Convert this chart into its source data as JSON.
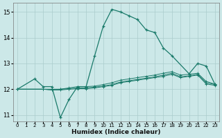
{
  "xlabel": "Humidex (Indice chaleur)",
  "ylabel": "",
  "bg_color": "#cce8e8",
  "grid_color": "#aacccc",
  "line_color": "#1a7a6a",
  "xlim": [
    -0.5,
    23.5
  ],
  "ylim": [
    10.75,
    15.35
  ],
  "yticks": [
    11,
    12,
    13,
    14,
    15
  ],
  "xticks": [
    0,
    1,
    2,
    3,
    4,
    5,
    6,
    7,
    8,
    9,
    10,
    11,
    12,
    13,
    14,
    15,
    16,
    17,
    18,
    19,
    20,
    21,
    22,
    23
  ],
  "curve1_x": [
    0,
    2,
    3,
    4,
    5,
    6,
    7,
    8,
    9,
    10,
    11,
    12,
    13,
    14,
    15,
    16,
    17,
    18,
    20,
    21,
    22,
    23
  ],
  "curve1_y": [
    12.0,
    12.4,
    12.1,
    12.1,
    10.9,
    11.6,
    12.1,
    12.1,
    13.3,
    14.45,
    15.1,
    15.0,
    14.85,
    14.7,
    14.3,
    14.2,
    13.6,
    13.3,
    12.6,
    13.0,
    12.9,
    12.2
  ],
  "curve2_x": [
    0,
    3,
    4,
    5,
    6,
    7,
    8,
    9,
    10,
    11,
    12,
    13,
    14,
    15,
    16,
    17,
    18,
    19,
    20,
    21,
    22,
    23
  ],
  "curve2_y": [
    12.0,
    12.0,
    12.0,
    12.0,
    12.05,
    12.1,
    12.1,
    12.12,
    12.18,
    12.25,
    12.35,
    12.4,
    12.45,
    12.5,
    12.55,
    12.62,
    12.68,
    12.55,
    12.58,
    12.62,
    12.3,
    12.2
  ],
  "curve3_x": [
    0,
    3,
    4,
    5,
    6,
    7,
    8,
    9,
    10,
    11,
    12,
    13,
    14,
    15,
    16,
    17,
    18,
    19,
    20,
    21,
    22,
    23
  ],
  "curve3_y": [
    12.0,
    12.0,
    11.98,
    12.0,
    12.02,
    12.05,
    12.05,
    12.08,
    12.12,
    12.18,
    12.28,
    12.33,
    12.38,
    12.43,
    12.48,
    12.55,
    12.62,
    12.48,
    12.52,
    12.58,
    12.25,
    12.18
  ],
  "curve4_x": [
    0,
    3,
    4,
    5,
    6,
    7,
    8,
    9,
    10,
    11,
    12,
    13,
    14,
    15,
    16,
    17,
    18,
    19,
    20,
    21,
    22,
    23
  ],
  "curve4_y": [
    12.0,
    12.0,
    11.97,
    11.97,
    12.0,
    12.02,
    12.02,
    12.05,
    12.1,
    12.15,
    12.25,
    12.3,
    12.35,
    12.4,
    12.45,
    12.5,
    12.58,
    12.45,
    12.5,
    12.55,
    12.2,
    12.15
  ]
}
